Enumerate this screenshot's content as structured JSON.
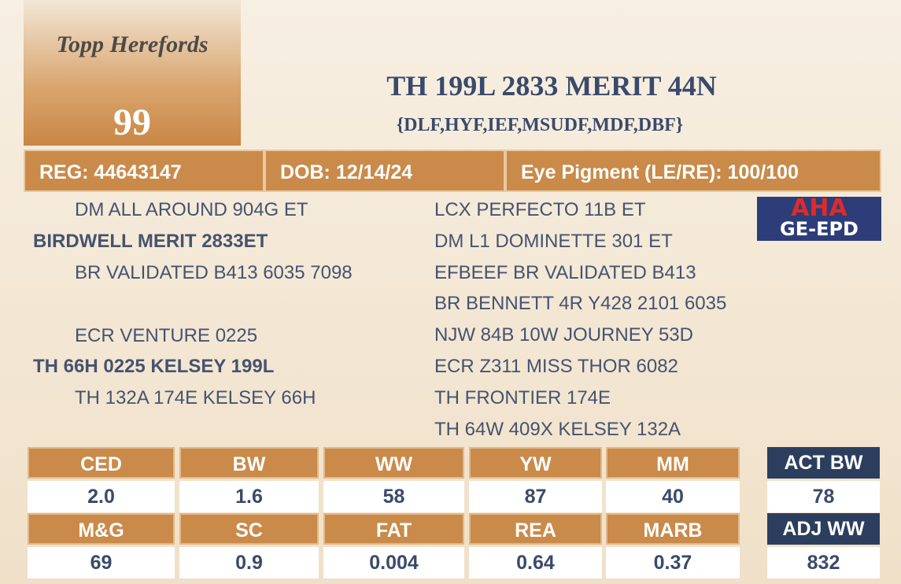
{
  "logo": "Topp Herefords",
  "lot": "99",
  "title": "TH 199L 2833 MERIT 44N",
  "subtitle": "{DLF,HYF,IEF,MSUDF,MDF,DBF}",
  "info": [
    "REG: 44643147",
    "DOB: 12/14/24",
    "Eye Pigment (LE/RE): 100/100"
  ],
  "pedigree": {
    "sire": {
      "sire": "DM ALL AROUND 904G ET",
      "name": "BIRDWELL MERIT 2833ET",
      "dam": "BR VALIDATED B413 6035 7098"
    },
    "dam": {
      "sire": "ECR VENTURE 0225",
      "name": "TH 66H 0225 KELSEY 199L",
      "dam": "TH 132A 174E KELSEY 66H"
    },
    "extended": [
      "LCX PERFECTO 11B ET",
      "DM L1 DOMINETTE 301 ET",
      "EFBEEF BR VALIDATED B413",
      "BR BENNETT 4R Y428 2101 6035",
      "NJW 84B 10W JOURNEY 53D",
      "ECR Z311 MISS THOR 6082",
      "TH FRONTIER 174E",
      "TH 64W 409X KELSEY 132A"
    ]
  },
  "badge": {
    "top": "AHA",
    "bottom": "GE-EPD"
  },
  "epds": {
    "headers": [
      [
        "CED",
        "BW",
        "WW",
        "YW",
        "MM"
      ],
      [
        "M&G",
        "SC",
        "FAT",
        "REA",
        "MARB"
      ]
    ],
    "values": [
      [
        "2.0",
        "1.6",
        "58",
        "87",
        "40"
      ],
      [
        "69",
        "0.9",
        "0.004",
        "0.64",
        "0.37"
      ]
    ]
  },
  "actuals": {
    "headers": [
      "ACT BW",
      "ADJ WW"
    ],
    "values": [
      "78",
      "832"
    ]
  }
}
